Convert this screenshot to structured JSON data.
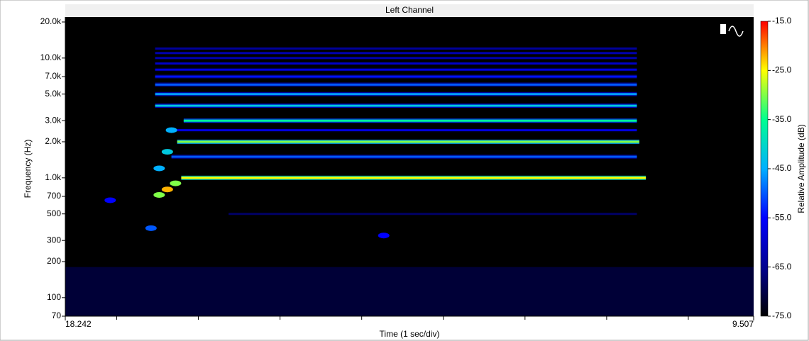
{
  "chart_data": {
    "type": "spectrogram",
    "title": "Left Channel",
    "xlabel": "Time (1 sec/div)",
    "ylabel": "Frequency (Hz)",
    "colorbar_label": "Relative Amplitude (dB)",
    "xlim": [
      0,
      8.43
    ],
    "xticks": [
      {
        "value": 0,
        "label": "18.242"
      },
      {
        "value": 8.43,
        "label": "9.507"
      }
    ],
    "xminor_ticks": [
      0.63,
      1.63,
      2.63,
      3.63,
      4.63,
      5.63,
      6.63,
      7.63
    ],
    "ylim": [
      70,
      20000
    ],
    "log_y": true,
    "yticks": [
      70,
      100,
      200,
      300,
      500,
      700,
      {
        "value": 1000,
        "label": "1.0k"
      },
      {
        "value": 2000,
        "label": "2.0k"
      },
      {
        "value": 3000,
        "label": "3.0k"
      },
      {
        "value": 5000,
        "label": "5.0k"
      },
      {
        "value": 7000,
        "label": "7.0k"
      },
      {
        "value": 10000,
        "label": "10.0k"
      },
      {
        "value": 20000,
        "label": "20.0k"
      }
    ],
    "clim": [
      -75,
      -15
    ],
    "cticks": [
      {
        "value": -15,
        "label": "-15.0"
      },
      {
        "value": -25,
        "label": "-25.0"
      },
      {
        "value": -35,
        "label": "-35.0"
      },
      {
        "value": -45,
        "label": "-45.0"
      },
      {
        "value": -55,
        "label": "-55.0"
      },
      {
        "value": -65,
        "label": "-65.0"
      },
      {
        "value": -75,
        "label": "-75.0"
      }
    ],
    "colormap": [
      "#000000",
      "#000090",
      "#0000ff",
      "#00b0ff",
      "#00ff90",
      "#ffff00",
      "#ff0000"
    ],
    "tracks": [
      {
        "freq": 1000,
        "t_start": 1.42,
        "t_end": 7.11,
        "level": -25
      },
      {
        "freq": 2000,
        "t_start": 1.37,
        "t_end": 7.03,
        "level": -30
      },
      {
        "freq": 3000,
        "t_start": 1.45,
        "t_end": 7.0,
        "level": -36
      },
      {
        "freq": 4000,
        "t_start": 1.1,
        "t_end": 7.0,
        "level": -42
      },
      {
        "freq": 5000,
        "t_start": 1.1,
        "t_end": 7.0,
        "level": -46
      },
      {
        "freq": 6000,
        "t_start": 1.1,
        "t_end": 7.0,
        "level": -50
      },
      {
        "freq": 7000,
        "t_start": 1.1,
        "t_end": 7.0,
        "level": -54
      },
      {
        "freq": 8000,
        "t_start": 1.1,
        "t_end": 7.0,
        "level": -58
      },
      {
        "freq": 9000,
        "t_start": 1.1,
        "t_end": 7.0,
        "level": -60
      },
      {
        "freq": 10000,
        "t_start": 1.1,
        "t_end": 7.0,
        "level": -62
      },
      {
        "freq": 11000,
        "t_start": 1.1,
        "t_end": 7.0,
        "level": -62
      },
      {
        "freq": 12000,
        "t_start": 1.1,
        "t_end": 7.0,
        "level": -64
      },
      {
        "freq": 1500,
        "t_start": 1.3,
        "t_end": 7.0,
        "level": -50
      },
      {
        "freq": 2500,
        "t_start": 1.3,
        "t_end": 7.0,
        "level": -58
      },
      {
        "freq": 500,
        "t_start": 2.0,
        "t_end": 7.0,
        "level": -68
      }
    ],
    "blobs": [
      {
        "t": 1.15,
        "freq": 720,
        "level": -30
      },
      {
        "t": 1.25,
        "freq": 800,
        "level": -22
      },
      {
        "t": 1.35,
        "freq": 900,
        "level": -30
      },
      {
        "t": 1.05,
        "freq": 380,
        "level": -50
      },
      {
        "t": 0.55,
        "freq": 650,
        "level": -55
      },
      {
        "t": 1.15,
        "freq": 1200,
        "level": -45
      },
      {
        "t": 1.25,
        "freq": 1650,
        "level": -42
      },
      {
        "t": 1.3,
        "freq": 2500,
        "level": -45
      },
      {
        "t": 3.9,
        "freq": 330,
        "level": -55
      }
    ],
    "noise_band": {
      "freq_low": 70,
      "freq_high": 180,
      "level": -68
    }
  }
}
